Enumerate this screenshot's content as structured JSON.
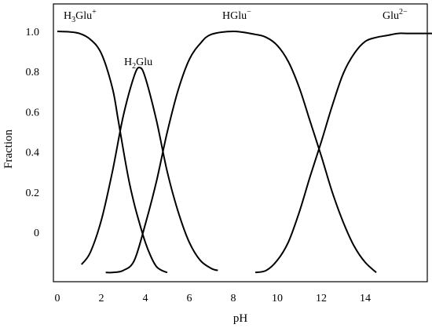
{
  "chart_data": {
    "type": "line",
    "xlabel": "pH",
    "ylabel": "Fraction",
    "x_ticks": [
      "0",
      "2",
      "4",
      "6",
      "8",
      "10",
      "12",
      "14"
    ],
    "y_ticks": [
      "1.0",
      "0.8",
      "0.6",
      "0.4",
      "0.2",
      "0"
    ],
    "xlim": [
      0,
      17.3
    ],
    "grid": false,
    "curve_labels": [
      {
        "id": "h3glu",
        "base": "H",
        "sub": "3",
        "after": "Glu",
        "sup": "+"
      },
      {
        "id": "h2glu",
        "base": "H",
        "sub": "2",
        "after": "Glu",
        "sup": ""
      },
      {
        "id": "hglu",
        "base": "",
        "sub": "",
        "after": "HGlu",
        "sup": "−"
      },
      {
        "id": "glu2",
        "base": "",
        "sub": "",
        "after": "Glu",
        "sup": "2−"
      }
    ],
    "series": [
      {
        "id": "h3glu",
        "points": [
          [
            0.0,
            1.0
          ],
          [
            0.5,
            0.998
          ],
          [
            1.0,
            0.99
          ],
          [
            1.5,
            0.96
          ],
          [
            2.0,
            0.89
          ],
          [
            2.5,
            0.72
          ],
          [
            2.75,
            0.57
          ],
          [
            3.0,
            0.41
          ],
          [
            3.25,
            0.26
          ],
          [
            3.5,
            0.14
          ],
          [
            3.75,
            0.04
          ],
          [
            4.0,
            -0.05
          ],
          [
            4.25,
            -0.12
          ],
          [
            4.5,
            -0.17
          ],
          [
            4.75,
            -0.19
          ],
          [
            5.0,
            -0.2
          ]
        ]
      },
      {
        "id": "h2glu",
        "points": [
          [
            1.1,
            -0.16
          ],
          [
            1.5,
            -0.1
          ],
          [
            2.0,
            0.06
          ],
          [
            2.5,
            0.3
          ],
          [
            3.0,
            0.58
          ],
          [
            3.5,
            0.78
          ],
          [
            3.75,
            0.82
          ],
          [
            4.0,
            0.77
          ],
          [
            4.5,
            0.56
          ],
          [
            5.0,
            0.3
          ],
          [
            5.5,
            0.1
          ],
          [
            6.0,
            -0.05
          ],
          [
            6.5,
            -0.14
          ],
          [
            7.0,
            -0.18
          ],
          [
            7.3,
            -0.19
          ]
        ]
      },
      {
        "id": "hglu",
        "points": [
          [
            2.2,
            -0.2
          ],
          [
            2.5,
            -0.2
          ],
          [
            3.0,
            -0.19
          ],
          [
            3.5,
            -0.14
          ],
          [
            4.0,
            0.04
          ],
          [
            4.5,
            0.25
          ],
          [
            5.0,
            0.5
          ],
          [
            5.5,
            0.71
          ],
          [
            6.0,
            0.86
          ],
          [
            6.5,
            0.94
          ],
          [
            7.0,
            0.985
          ],
          [
            8.0,
            1.0
          ],
          [
            9.0,
            0.985
          ],
          [
            9.5,
            0.97
          ],
          [
            10.0,
            0.93
          ],
          [
            10.5,
            0.85
          ],
          [
            11.0,
            0.72
          ],
          [
            11.5,
            0.55
          ],
          [
            12.0,
            0.38
          ],
          [
            12.5,
            0.2
          ],
          [
            13.0,
            0.05
          ],
          [
            13.5,
            -0.07
          ],
          [
            14.0,
            -0.15
          ],
          [
            14.5,
            -0.2
          ]
        ]
      },
      {
        "id": "glu2",
        "points": [
          [
            9.0,
            -0.2
          ],
          [
            9.5,
            -0.19
          ],
          [
            10.0,
            -0.14
          ],
          [
            10.5,
            -0.05
          ],
          [
            11.0,
            0.1
          ],
          [
            11.5,
            0.28
          ],
          [
            12.0,
            0.45
          ],
          [
            12.5,
            0.63
          ],
          [
            13.0,
            0.79
          ],
          [
            13.5,
            0.89
          ],
          [
            14.0,
            0.95
          ],
          [
            14.5,
            0.97
          ],
          [
            15.0,
            0.98
          ],
          [
            15.5,
            0.99
          ],
          [
            16.0,
            0.99
          ],
          [
            17.3,
            0.99
          ]
        ]
      }
    ]
  }
}
